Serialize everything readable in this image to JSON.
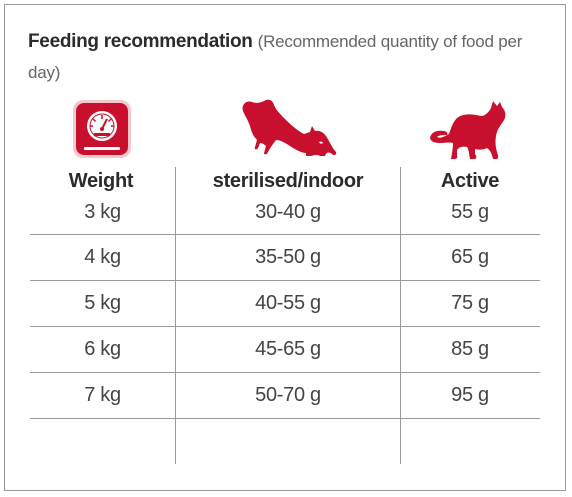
{
  "heading": {
    "title": "Feeding recommendation",
    "subtitle": "(Recommended quantity of food per day)"
  },
  "icons": {
    "weight": "scale-icon",
    "sterilised": "stretching-cat-icon",
    "active": "active-cat-icon",
    "accent_color": "#c8102e"
  },
  "table": {
    "columns": [
      "Weight",
      "sterilised/indoor",
      "Active"
    ],
    "rows": [
      [
        "3 kg",
        "30-40 g",
        "55 g"
      ],
      [
        "4 kg",
        "35-50 g",
        "65 g"
      ],
      [
        "5 kg",
        "40-55 g",
        "75 g"
      ],
      [
        "6 kg",
        "45-65 g",
        "85 g"
      ],
      [
        "7 kg",
        "50-70 g",
        "95 g"
      ]
    ]
  }
}
